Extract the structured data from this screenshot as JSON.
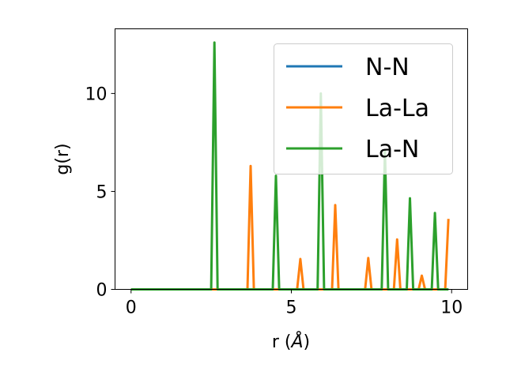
{
  "chart_data": {
    "type": "line",
    "xlabel_prefix": "r (",
    "xlabel_unit": "Å",
    "xlabel_suffix": ")",
    "ylabel": "g(r)",
    "xlim": [
      -0.5,
      10.5
    ],
    "ylim": [
      0,
      13.3
    ],
    "xticks": [
      0,
      5,
      10
    ],
    "yticks": [
      0,
      5,
      10
    ],
    "grid": false,
    "legend_position": "top-right",
    "series": [
      {
        "name": "N-N",
        "color": "#1f77b4",
        "points": [
          [
            0,
            0
          ],
          [
            9.9,
            0
          ]
        ]
      },
      {
        "name": "La-La",
        "color": "#ff7f0e",
        "points": [
          [
            0,
            0
          ],
          [
            3.63,
            0
          ],
          [
            3.73,
            6.3
          ],
          [
            3.83,
            0
          ],
          [
            5.18,
            0
          ],
          [
            5.28,
            1.55
          ],
          [
            5.38,
            0
          ],
          [
            6.27,
            0
          ],
          [
            6.37,
            4.3
          ],
          [
            6.47,
            0
          ],
          [
            7.3,
            0
          ],
          [
            7.4,
            1.6
          ],
          [
            7.5,
            0
          ],
          [
            8.2,
            0
          ],
          [
            8.3,
            2.55
          ],
          [
            8.4,
            0
          ],
          [
            8.97,
            0
          ],
          [
            9.07,
            0.7
          ],
          [
            9.17,
            0
          ],
          [
            9.8,
            0
          ],
          [
            9.9,
            3.6
          ]
        ]
      },
      {
        "name": "La-N",
        "color": "#2ca02c",
        "points": [
          [
            0,
            0
          ],
          [
            2.5,
            0
          ],
          [
            2.6,
            12.6
          ],
          [
            2.7,
            0
          ],
          [
            4.42,
            0
          ],
          [
            4.52,
            5.8
          ],
          [
            4.62,
            0
          ],
          [
            5.82,
            0
          ],
          [
            5.92,
            10.0
          ],
          [
            6.02,
            0
          ],
          [
            7.82,
            0
          ],
          [
            7.92,
            7.1
          ],
          [
            8.02,
            0
          ],
          [
            8.6,
            0
          ],
          [
            8.7,
            4.65
          ],
          [
            8.8,
            0
          ],
          [
            9.38,
            0
          ],
          [
            9.48,
            3.9
          ],
          [
            9.58,
            0
          ],
          [
            9.9,
            0
          ]
        ]
      }
    ]
  }
}
